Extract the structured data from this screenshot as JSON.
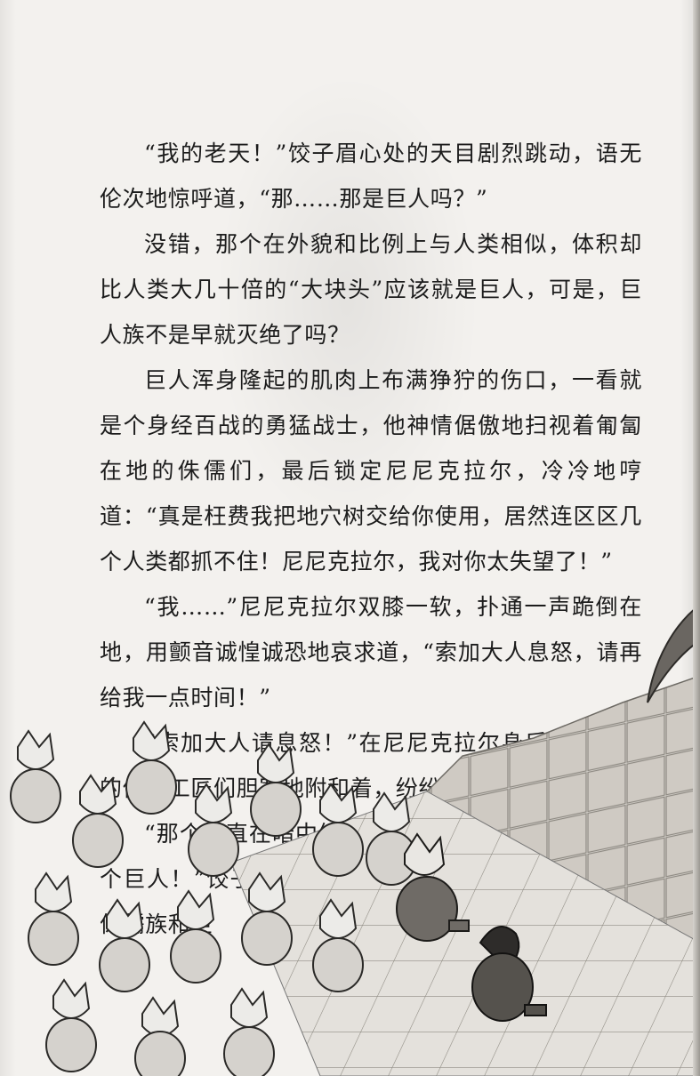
{
  "paragraphs": [
    "“我的老天！”饺子眉心处的天目剧烈跳动，语无伦次地惊呼道，“那……那是巨人吗？”",
    "没错，那个在外貌和比例上与人类相似，体积却比人类大几十倍的“大块头”应该就是巨人，可是，巨人族不是早就灭绝了吗？",
    "巨人浑身隆起的肌肉上布满狰狞的伤口，一看就是个身经百战的勇猛战士，他神情倨傲地扫视着匍匐在地的侏儒们，最后锁定尼尼克拉尔，冷冷地哼道：“真是枉费我把地穴树交给你使用，居然连区区几个人类都抓不住！尼尼克拉尔，我对你太失望了！”",
    "“我……”尼尼克拉尔双膝一软，扑通一声跪倒在地，用颤音诚惶诚恐地哀求道，“索加大人息怒，请再给我一点时间！”",
    "“索加大人请息怒！”在尼尼克拉尔身后，洞穴内的侏儒工匠们胆寒地附和着，纷纷屈膝向巨人跪下。",
    "“那个一直在暗中给沙鲁提供帮助的大人物就是这个巨人！”饺子费解地咕哝道，“可仇恨之书中不是说侏儒族和巨"
  ],
  "colors": {
    "paper": "#f3f1ee",
    "ink": "#1c1c1c",
    "stone": "#cfcac3"
  }
}
